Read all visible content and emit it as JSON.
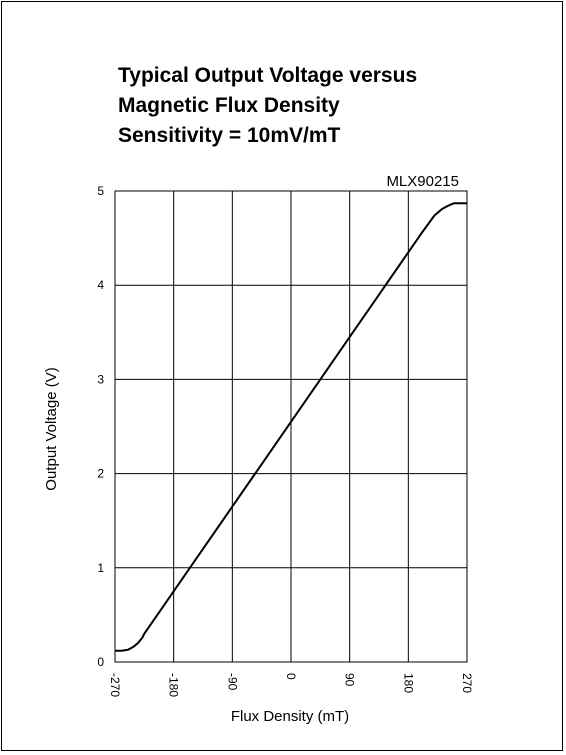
{
  "chart_data": {
    "type": "line",
    "title": [
      "Typical Output Voltage versus",
      "Magnetic Flux Density",
      "Sensitivity = 10mV/mT"
    ],
    "annotation": "MLX90215",
    "xlabel": "Flux Density (mT)",
    "ylabel": "Output Voltage (V)",
    "xlim": [
      -270,
      270
    ],
    "ylim": [
      0,
      5
    ],
    "xticks": [
      -270,
      -180,
      -90,
      0,
      90,
      180,
      270
    ],
    "xtick_labels": [
      "-270",
      "-180",
      "-90",
      "0",
      "90",
      "180",
      "270"
    ],
    "yticks": [
      0,
      1,
      2,
      3,
      4,
      5
    ],
    "ytick_labels": [
      "0",
      "1",
      "2",
      "3",
      "4",
      "5"
    ],
    "grid": true,
    "series": [
      {
        "color": "#000000",
        "x": [
          -270,
          -260,
          -250,
          -242,
          -235,
          -228,
          -225,
          -200,
          -150,
          -100,
          -50,
          0,
          50,
          100,
          150,
          200,
          220,
          225,
          232,
          240,
          250,
          260,
          270
        ],
        "y": [
          0.12,
          0.12,
          0.13,
          0.16,
          0.2,
          0.26,
          0.3,
          0.55,
          1.05,
          1.55,
          2.05,
          2.55,
          3.05,
          3.55,
          4.05,
          4.55,
          4.74,
          4.77,
          4.81,
          4.84,
          4.87,
          4.87,
          4.87
        ]
      }
    ]
  }
}
